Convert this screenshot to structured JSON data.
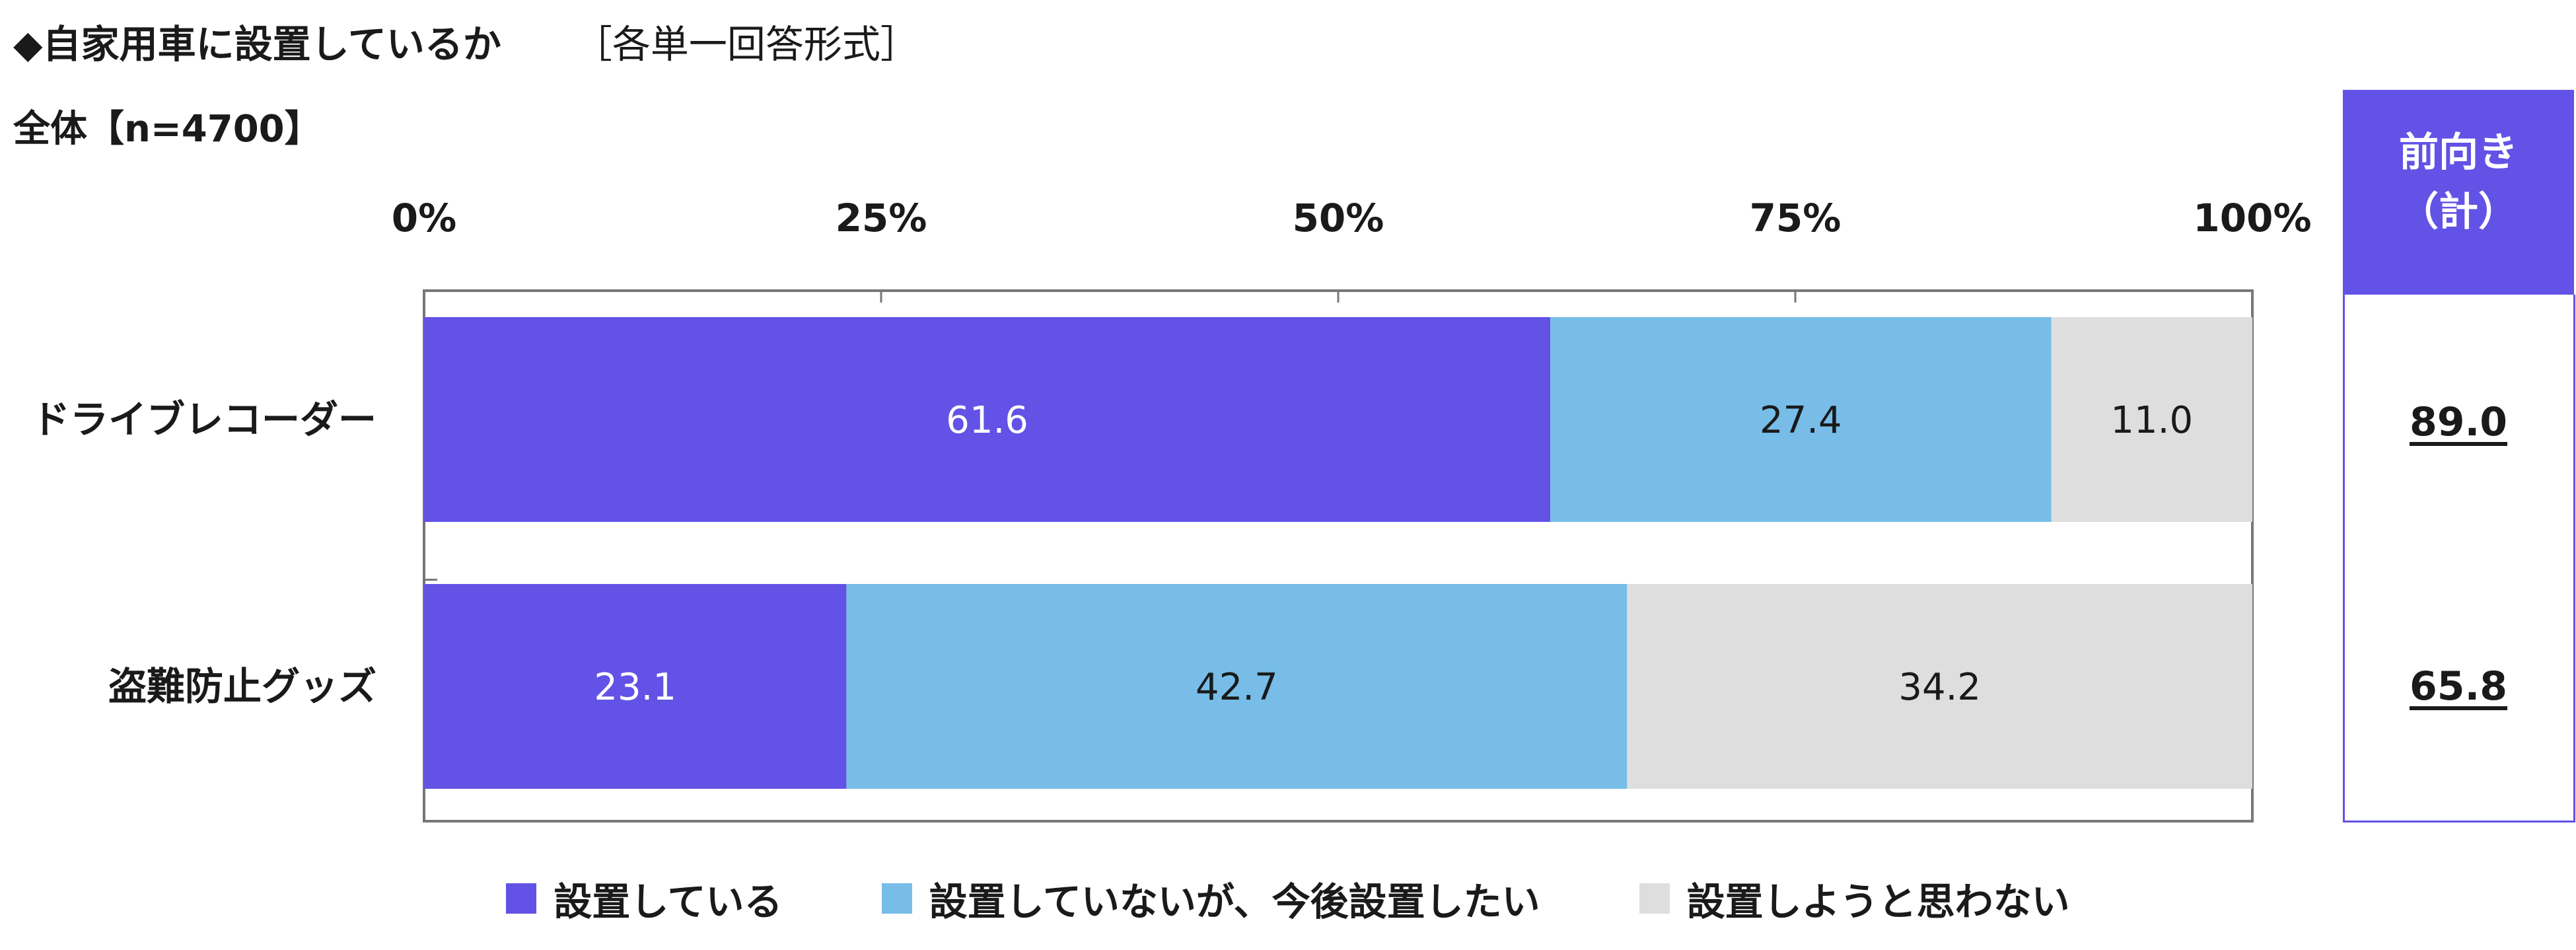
{
  "title": "◆自家用車に設置しているか",
  "format_note": "［各単一回答形式］",
  "subtitle": "全体【n=4700】",
  "side_column": {
    "header_line1": "前向き",
    "header_line2": "（計）",
    "values": [
      "89.0",
      "65.8"
    ]
  },
  "colors": {
    "installed": "#6352e6",
    "want_to_install": "#77bde8",
    "not_installing": "#dedede",
    "axis": "#777777"
  },
  "chart_data": {
    "type": "bar",
    "orientation": "horizontal",
    "stacked": true,
    "percent_stacked": true,
    "categories": [
      "ドライブレコーダー",
      "盗難防止グッズ"
    ],
    "series": [
      {
        "name": "設置している",
        "values": [
          61.6,
          23.1
        ]
      },
      {
        "name": "設置していないが、今後設置したい",
        "values": [
          27.4,
          42.7
        ]
      },
      {
        "name": "設置しようと思わない",
        "values": [
          11.0,
          34.2
        ]
      }
    ],
    "data_labels": [
      [
        "61.6",
        "23.1"
      ],
      [
        "27.4",
        "42.7"
      ],
      [
        "11.0",
        "34.2"
      ]
    ],
    "xlim": [
      0,
      100
    ],
    "x_ticks": [
      "0%",
      "25%",
      "50%",
      "75%",
      "100%"
    ],
    "legend_position": "bottom",
    "grid": false
  }
}
